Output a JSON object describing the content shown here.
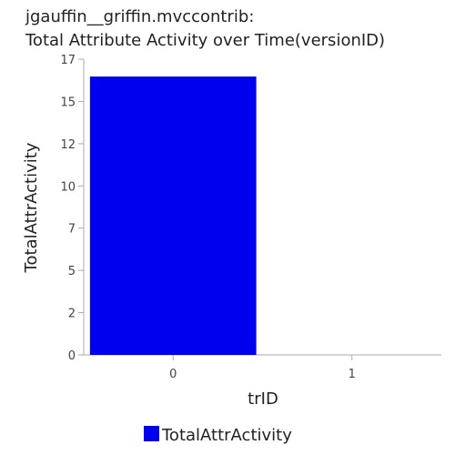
{
  "chart_data": {
    "type": "bar",
    "title": [
      "jgauffin__griffin.mvccontrib:",
      "Total Attribute Activity over Time(versionID)"
    ],
    "xlabel": "trID",
    "ylabel": "TotalAttrActivity",
    "categories": [
      "0",
      "1"
    ],
    "series": [
      {
        "name": "TotalAttrActivity",
        "values": [
          16,
          0
        ],
        "color": "#0000ee"
      }
    ],
    "ylim": [
      0,
      17
    ],
    "yticks": [
      "0",
      "2",
      "5",
      "7",
      "10",
      "12",
      "15",
      "17"
    ],
    "ytick_values": [
      0,
      2.43,
      4.86,
      7.29,
      9.71,
      12.14,
      14.57,
      17
    ],
    "grid": false,
    "legend_position": "bottom"
  }
}
